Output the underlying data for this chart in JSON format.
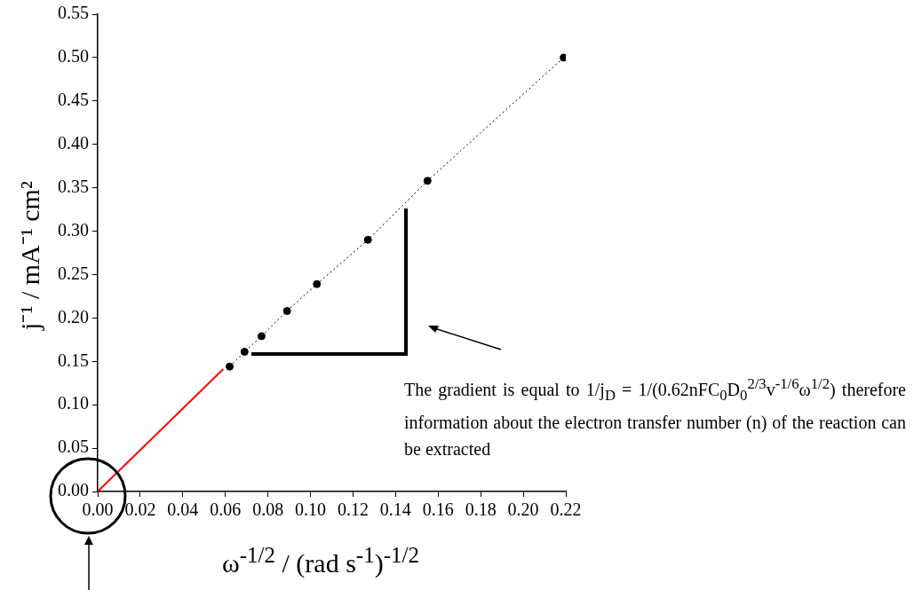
{
  "chart_data": {
    "type": "line",
    "xlabel": "ω$^{-1/2}$ / (rad s$^{-1}$)$^{-1/2}$",
    "ylabel": "j⁻¹ / mA⁻¹ cm²",
    "xlim": [
      0,
      0.22
    ],
    "xticks": [
      {
        "value": 0,
        "label": "0.00"
      },
      {
        "value": 0.02,
        "label": "0.02"
      },
      {
        "value": 0.04,
        "label": "0.04"
      },
      {
        "value": 0.06,
        "label": "0.06"
      },
      {
        "value": 0.08,
        "label": "0.08"
      },
      {
        "value": 0.1,
        "label": "0.10"
      },
      {
        "value": 0.12,
        "label": "0.12"
      },
      {
        "value": 0.14,
        "label": "0.14"
      },
      {
        "value": 0.16,
        "label": "0.16"
      },
      {
        "value": 0.18,
        "label": "0.18"
      },
      {
        "value": 0.2,
        "label": "0.20"
      },
      {
        "value": 0.22,
        "label": "0.22"
      }
    ],
    "ylim": [
      0,
      0.55
    ],
    "yticks": [
      {
        "value": 0,
        "label": "0.00"
      },
      {
        "value": 0.05,
        "label": "0.05"
      },
      {
        "value": 0.1,
        "label": "0.10"
      },
      {
        "value": 0.15,
        "label": "0.15"
      },
      {
        "value": 0.2,
        "label": "0.20"
      },
      {
        "value": 0.25,
        "label": "0.25"
      },
      {
        "value": 0.3,
        "label": "0.30"
      },
      {
        "value": 0.35,
        "label": "0.35"
      },
      {
        "value": 0.4,
        "label": "0.40"
      },
      {
        "value": 0.45,
        "label": "0.45"
      },
      {
        "value": 0.5,
        "label": "0.50"
      },
      {
        "value": 0.55,
        "label": "0.55"
      }
    ],
    "grid": false,
    "legend": false,
    "series": [
      {
        "type": "line",
        "color": "#000000",
        "marker": "circle",
        "line_style": "dotted",
        "x": [
          0.062,
          0.069,
          0.077,
          0.089,
          0.103,
          0.127,
          0.155,
          0.219
        ],
        "values": [
          0.144,
          0.161,
          0.179,
          0.208,
          0.239,
          0.29,
          0.358,
          0.5
        ]
      },
      {
        "type": "line",
        "color": "#ff0000",
        "marker": "none",
        "line_style": "solid",
        "x": [
          0,
          0.059
        ],
        "values": [
          0,
          0.141
        ]
      }
    ],
    "annotations": [
      "The gradient is equal to 1/j$_{D}$ = 1/(0.62nFC$_{0}$D$_{0}$$^{2/3}$v$^{-1/6}$ω$^{1/2}$) therefore information about the electron transfer number (n) of the reaction can be extracted"
    ]
  }
}
